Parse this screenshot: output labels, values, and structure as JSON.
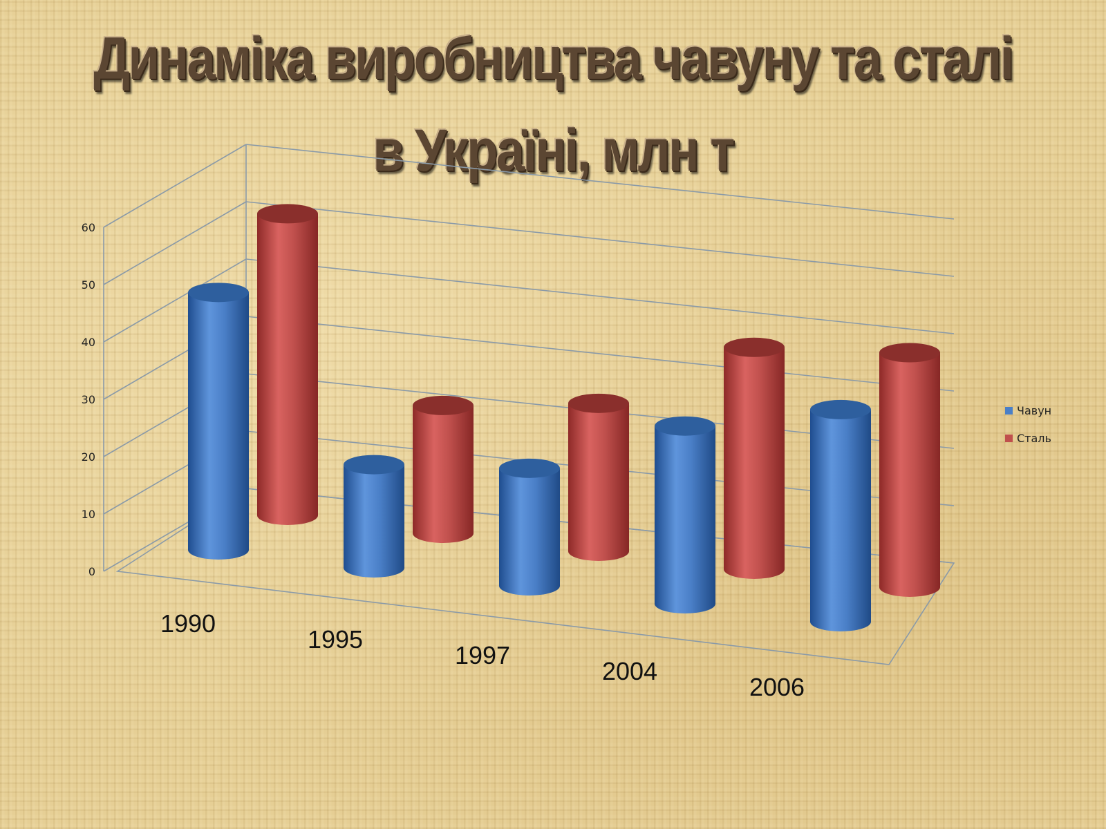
{
  "title": {
    "line1": "Динаміка виробництва чавуну та сталі",
    "line2": "в Україні, млн т"
  },
  "chart_data": {
    "type": "bar",
    "bar_shape": "3d-cylinder",
    "categories": [
      "1990",
      "1995",
      "1997",
      "2004",
      "2006"
    ],
    "series": [
      {
        "name": "Чавун",
        "values": [
          44.9,
          18.0,
          20.5,
          31.0,
          37.0
        ],
        "color": "#4a7fc7"
      },
      {
        "name": "Сталь",
        "values": [
          52.6,
          22.3,
          25.8,
          38.7,
          40.9
        ],
        "color": "#c0504d"
      }
    ],
    "ylim": [
      0,
      60
    ],
    "yticks": [
      "0",
      "10",
      "20",
      "30",
      "40",
      "50",
      "60"
    ],
    "grid": true,
    "legend": "right"
  }
}
